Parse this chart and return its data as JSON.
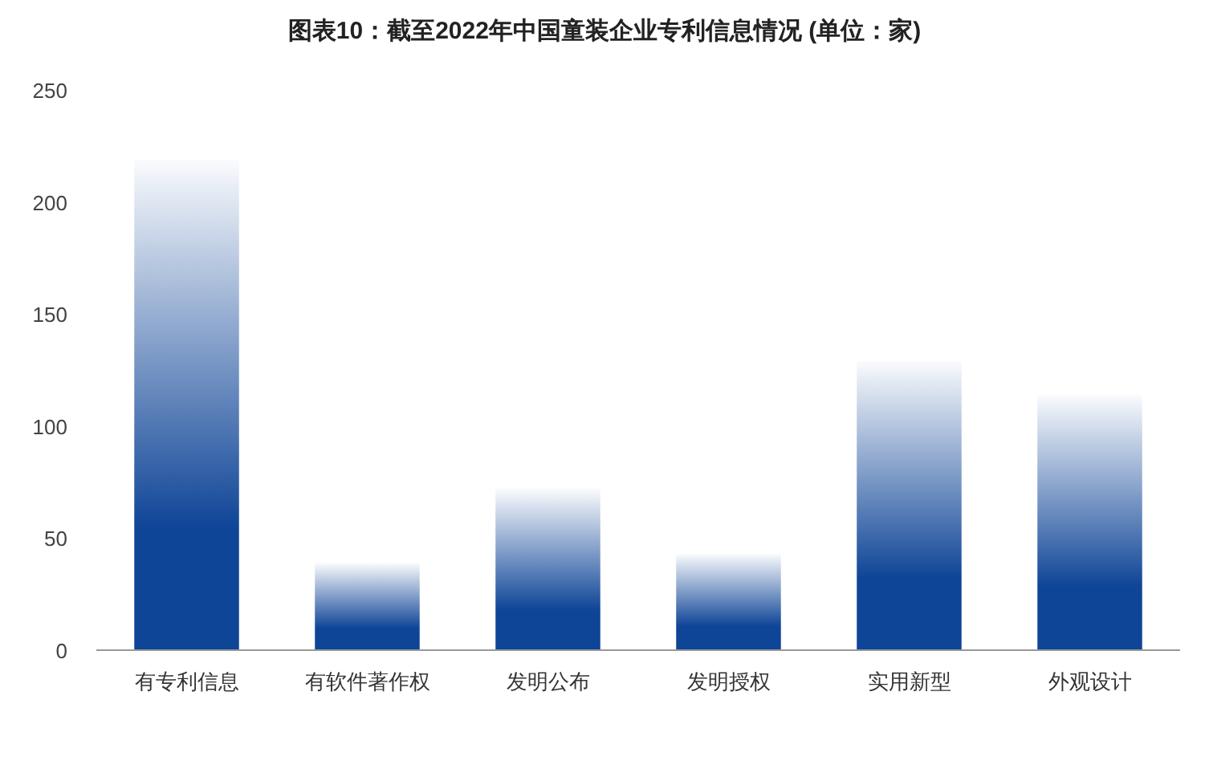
{
  "chart_data": {
    "type": "bar",
    "title": "图表10：截至2022年中国童装企业专利信息情况 (单位：家)",
    "categories": [
      "有专利信息",
      "有软件著作权",
      "发明公布",
      "发明授权",
      "实用新型",
      "外观设计"
    ],
    "values": [
      219,
      39,
      72,
      43,
      129,
      114
    ],
    "color": "#0f4597",
    "ylim": [
      0,
      250
    ],
    "yticks": [
      0,
      50,
      100,
      150,
      200,
      250
    ],
    "grid": false
  }
}
